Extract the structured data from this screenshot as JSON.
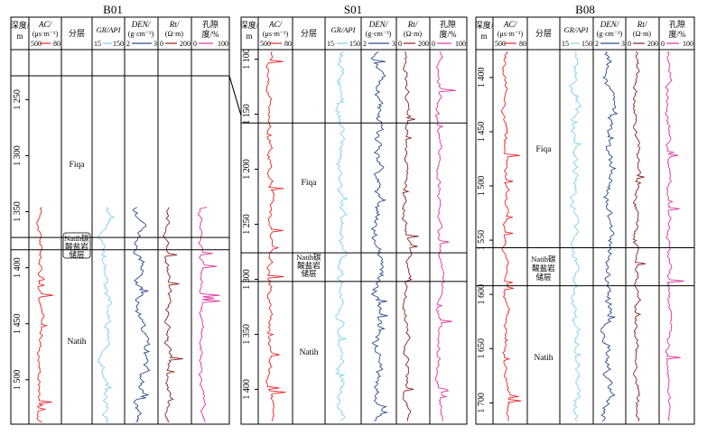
{
  "colors": {
    "ac": "#e8262b",
    "gr": "#7fd0ee",
    "den": "#2a4a8c",
    "rt": "#8a2020",
    "por": "#e0359a",
    "frame": "#000000"
  },
  "headers": {
    "depth_line1": "深度/",
    "depth_line2": "m",
    "ac_title": "AC/",
    "ac_unit": "(μs·m⁻¹)",
    "ac_left": "500",
    "ac_right": "80",
    "layer_title": "分层",
    "gr_title": "GR/API",
    "gr_left": "15",
    "gr_right": "150",
    "den_title": "DEN/",
    "den_unit": "(g·cm⁻³)",
    "den_left": "2",
    "den_right": "3",
    "rt_title": "Rt/",
    "rt_unit": "(Ω·m)",
    "rt_left": "0",
    "rt_right": "200",
    "por_title": "孔隙",
    "por_title2": "度/%",
    "por_left": "0",
    "por_right": "100"
  },
  "layers": {
    "fiqa": "Fiqa",
    "natih": "Natih",
    "reservoir_line1": "Natih碳",
    "reservoir_line2": "酸盐岩",
    "reservoir_line3": "储层"
  },
  "wells": [
    {
      "name": "B01",
      "depth_ticks": [
        "1 250",
        "1 300",
        "1 350",
        "1 400",
        "1 450",
        "1 500"
      ],
      "depth_range": [
        1207,
        1538
      ],
      "tops": {
        "fiqa_base": 1373,
        "reservoir_base": 1384
      },
      "logged_from": 1346
    },
    {
      "name": "S01",
      "depth_ticks": [
        "1 100",
        "1 150",
        "1 200",
        "1 250",
        "1 300",
        "1 350",
        "1 400"
      ],
      "depth_range": [
        1093,
        1430
      ],
      "tops": {
        "fiqa_top": 1158,
        "fiqa_base": 1276,
        "reservoir_base": 1302
      },
      "logged_from": 1093
    },
    {
      "name": "B08",
      "depth_ticks": [
        "1 400",
        "1 450",
        "1 500",
        "1 550",
        "1 600",
        "1 650",
        "1 700"
      ],
      "depth_range": [
        1376,
        1718
      ],
      "tops": {
        "fiqa_base": 1557,
        "reservoir_base": 1592
      },
      "logged_from": 1376
    }
  ]
}
